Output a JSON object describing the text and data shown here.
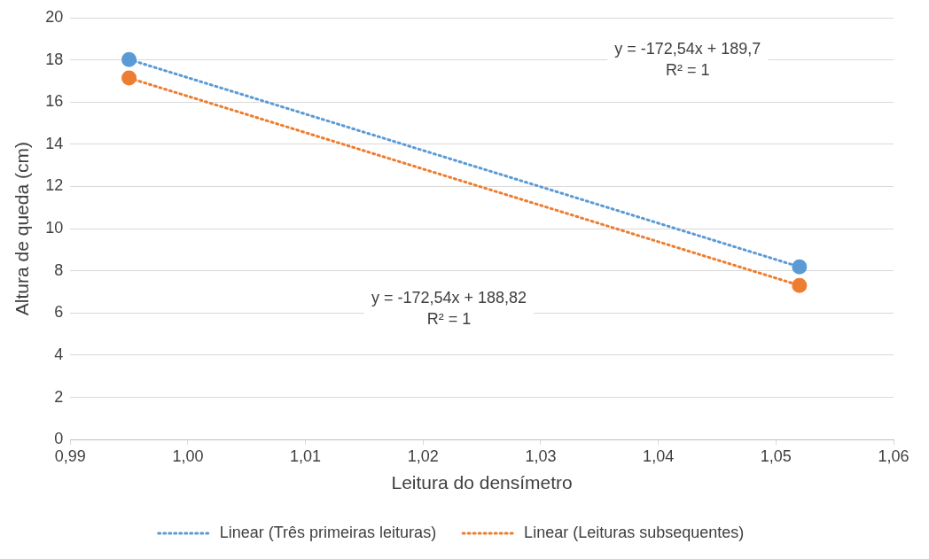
{
  "chart_data": {
    "type": "scatter",
    "xlabel": "Leitura do densímetro",
    "ylabel": "Altura de queda (cm)",
    "x": [
      0.995,
      1.052
    ],
    "xlim": [
      0.99,
      1.06
    ],
    "xticks": [
      {
        "value": 0.99,
        "label": "0,99"
      },
      {
        "value": 1.0,
        "label": "1,00"
      },
      {
        "value": 1.01,
        "label": "1,01"
      },
      {
        "value": 1.02,
        "label": "1,02"
      },
      {
        "value": 1.03,
        "label": "1,03"
      },
      {
        "value": 1.04,
        "label": "1,04"
      },
      {
        "value": 1.05,
        "label": "1,05"
      },
      {
        "value": 1.06,
        "label": "1,06"
      }
    ],
    "ylim": [
      0,
      20
    ],
    "yticks": [
      0,
      2,
      4,
      6,
      8,
      10,
      12,
      14,
      16,
      18,
      20
    ],
    "grid": "y",
    "legend": "bottom",
    "marker": "circle",
    "series": [
      {
        "type": "scatter",
        "color": "#5b9bd5",
        "values": [
          18.02,
          8.19
        ]
      },
      {
        "type": "scatter",
        "color": "#ed7d31",
        "values": [
          17.14,
          7.31
        ]
      },
      {
        "type": "line",
        "name": "Linear (Três primeiras leituras)",
        "color": "#5b9bd5",
        "line_style": "dotted",
        "marker": "none",
        "values": [
          18.02,
          8.19
        ]
      },
      {
        "type": "line",
        "name": "Linear (Leituras subsequentes)",
        "color": "#ed7d31",
        "line_style": "dotted",
        "marker": "none",
        "values": [
          17.14,
          7.31
        ]
      }
    ],
    "annotations": [
      "y = -172,54x + 189,7\nR² = 1",
      "y = -172,54x + 188,82\nR² = 1"
    ]
  }
}
